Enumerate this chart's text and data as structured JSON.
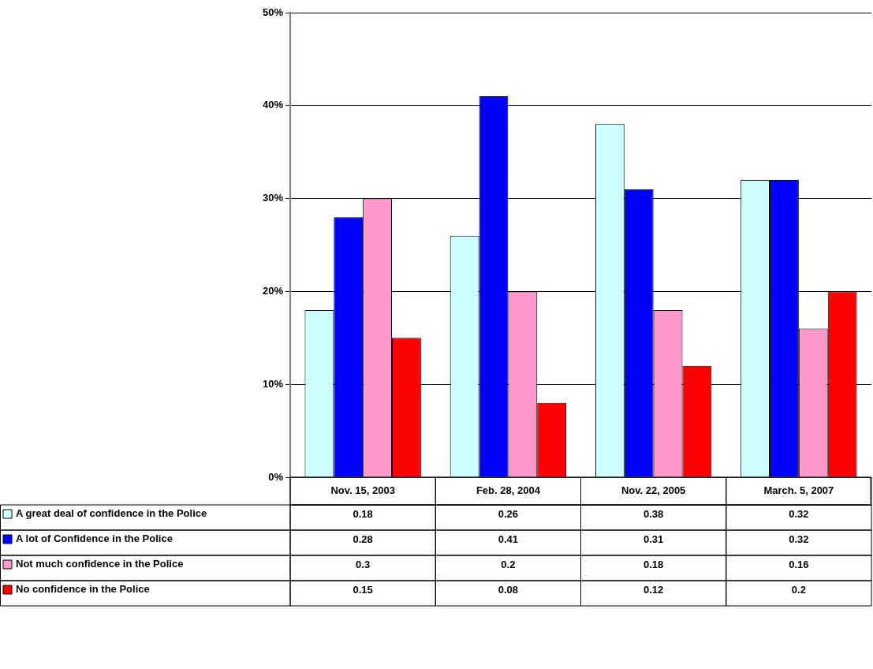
{
  "chart_data": {
    "type": "bar",
    "categories": [
      "Nov. 15, 2003",
      "Feb. 28, 2004",
      "Nov. 22, 2005",
      "March. 5, 2007"
    ],
    "series": [
      {
        "name": "A great deal of confidence in the Police",
        "color": "#ccffff",
        "values": [
          0.18,
          0.26,
          0.38,
          0.32
        ]
      },
      {
        "name": "A lot of Confidence in the Police",
        "color": "#0000ff",
        "values": [
          0.28,
          0.41,
          0.31,
          0.32
        ]
      },
      {
        "name": "Not much confidence in the Police",
        "color": "#ff99cc",
        "values": [
          0.3,
          0.2,
          0.18,
          0.16
        ]
      },
      {
        "name": "No confidence in the Police",
        "color": "#ff0000",
        "values": [
          0.15,
          0.08,
          0.12,
          0.2
        ]
      }
    ],
    "ylim": [
      0,
      0.5
    ],
    "yticks": [
      {
        "value": 0,
        "label": "0%"
      },
      {
        "value": 0.1,
        "label": "10%"
      },
      {
        "value": 0.2,
        "label": "20%"
      },
      {
        "value": 0.3,
        "label": "30%"
      },
      {
        "value": 0.4,
        "label": "40%"
      },
      {
        "value": 0.5,
        "label": "50%"
      }
    ],
    "grid": "y",
    "legend": "bottom left",
    "data_labels": true
  }
}
